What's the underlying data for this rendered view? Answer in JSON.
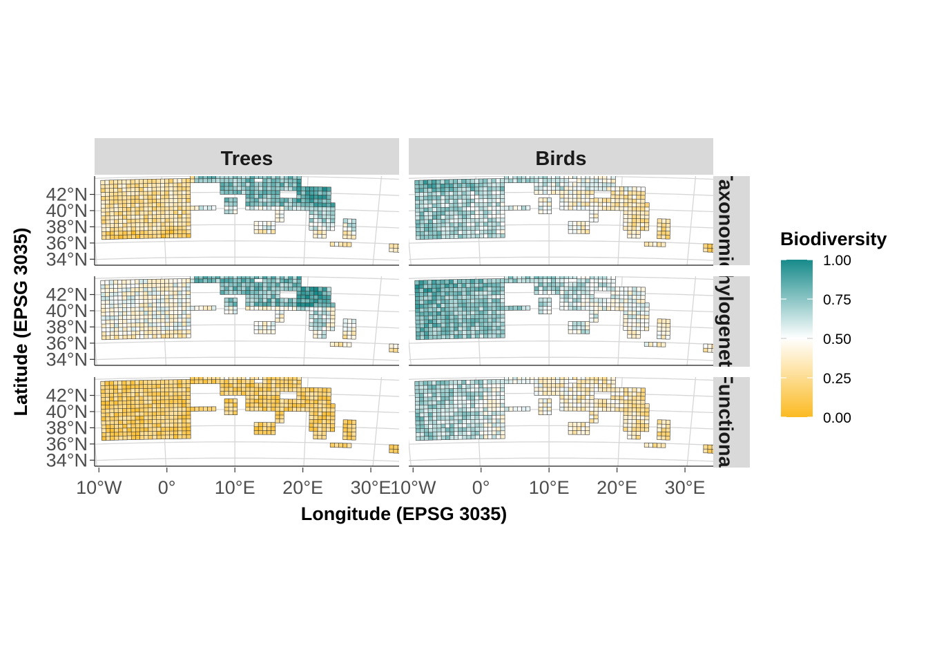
{
  "figure": {
    "columns": [
      "Trees",
      "Birds"
    ],
    "rows": [
      "Taxonomic",
      "Phylogenetic",
      "Functional"
    ],
    "x_axis_title": "Longitude (EPSG 3035)",
    "y_axis_title": "Latitude (EPSG 3035)"
  },
  "legend": {
    "title": "Biodiversity",
    "labels": [
      "1.00",
      "0.75",
      "0.50",
      "0.25",
      "0.00"
    ],
    "colors": {
      "low": "#fbba22",
      "mid": "#ffffff",
      "high": "#178a8a"
    }
  },
  "chart_data": {
    "type": "heatmap",
    "map_kind": "gridded biodiversity map of the Mediterranean region (faceted)",
    "x_tick_labels": [
      "10°W",
      "0°",
      "10°E",
      "20°E",
      "30°E"
    ],
    "y_tick_labels": [
      "42°N",
      "40°N",
      "38°N",
      "36°N",
      "34°N"
    ],
    "lon_range": [
      -10.5,
      34
    ],
    "lat_range": [
      33,
      44
    ],
    "color_scale": {
      "min": 0,
      "max": 1,
      "midpoint": 0.5
    },
    "grid_lines": true,
    "legend_position": "right",
    "panels": [
      {
        "column": "Trees",
        "row": "Taxonomic",
        "overall_tendency": "low in Iberia, high along Alps, Italy and Balkans"
      },
      {
        "column": "Birds",
        "row": "Taxonomic",
        "overall_tendency": "moderate-high in Iberia, low in the east"
      },
      {
        "column": "Trees",
        "row": "Phylogenetic",
        "overall_tendency": "mixed, high along mountains"
      },
      {
        "column": "Birds",
        "row": "Phylogenetic",
        "overall_tendency": "high across most of the west, lower in Greece"
      },
      {
        "column": "Trees",
        "row": "Functional",
        "overall_tendency": "low almost everywhere"
      },
      {
        "column": "Birds",
        "row": "Functional",
        "overall_tendency": "moderate, low in southeast"
      }
    ]
  }
}
